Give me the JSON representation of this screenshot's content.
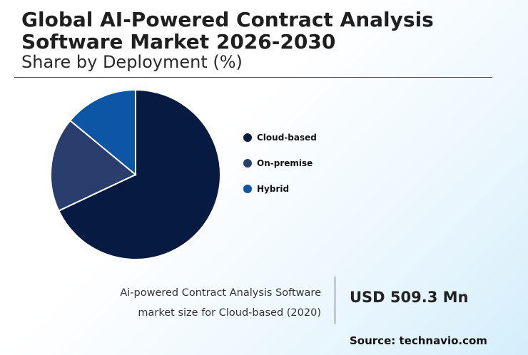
{
  "header": {
    "title_line1": "Global AI-Powered Contract Analysis",
    "title_line2": "Software Market 2026-2030",
    "subtitle": "Share by Deployment (%)"
  },
  "chart_data": {
    "type": "pie",
    "title": "Global AI-Powered Contract Analysis Software Market 2026-2030",
    "subtitle": "Share by Deployment (%)",
    "categories": [
      "Cloud-based",
      "On-premise",
      "Hybrid"
    ],
    "values": [
      68,
      18,
      14
    ],
    "colors": [
      "#061a42",
      "#2a3e6e",
      "#0d56a6"
    ],
    "legend_position": "right"
  },
  "stat": {
    "description_line1": "Ai-powered Contract Analysis Software",
    "description_line2": "market size for Cloud-based (2020)",
    "value": "USD 509.3 Mn"
  },
  "source": "Source: technavio.com"
}
